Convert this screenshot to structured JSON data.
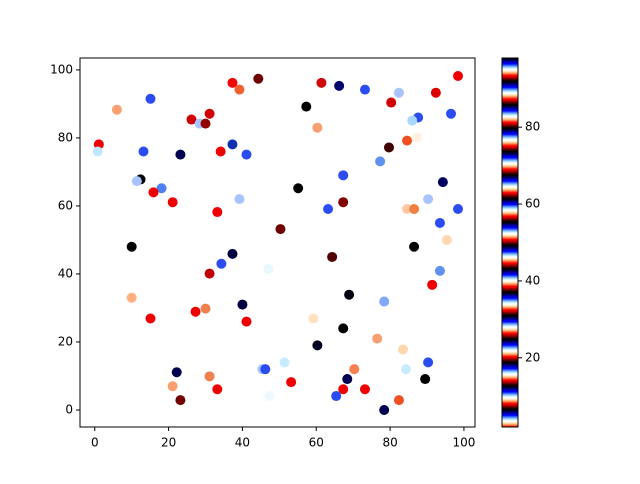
{
  "chart_data": {
    "type": "scatter",
    "x": [
      98.4,
      92.4,
      44.3,
      37.3,
      39.2,
      61.4,
      66.2,
      73.2,
      82.4,
      15.1,
      57.3,
      80.3,
      6.0,
      96.5,
      26.2,
      28.4,
      30.0,
      31.1,
      87.6,
      86.0,
      60.3,
      84.6,
      87.3,
      1.1,
      0.8,
      13.2,
      23.2,
      34.1,
      37.3,
      41.1,
      79.7,
      77.3,
      67.3,
      12.4,
      11.4,
      18.1,
      15.9,
      55.1,
      94.3,
      90.3,
      39.2,
      21.1,
      67.3,
      63.2,
      84.6,
      86.5,
      98.4,
      33.2,
      93.5,
      50.3,
      95.4,
      10.0,
      86.5,
      37.3,
      64.3,
      34.3,
      47.0,
      93.5,
      31.1,
      91.4,
      68.9,
      40.0,
      78.4,
      10.0,
      30.0,
      27.3,
      59.2,
      15.1,
      41.1,
      67.3,
      76.5,
      60.3,
      83.5,
      51.4,
      90.3,
      45.4,
      46.2,
      84.3,
      70.3,
      22.2,
      53.2,
      31.1,
      68.4,
      89.5,
      21.1,
      33.2,
      73.2,
      67.3,
      65.4,
      82.4,
      23.2,
      47.3,
      78.4
    ],
    "y": [
      98.2,
      93.3,
      97.4,
      96.2,
      94.2,
      96.2,
      95.3,
      94.2,
      93.3,
      91.5,
      89.2,
      90.4,
      88.3,
      87.1,
      85.4,
      84.2,
      84.2,
      87.1,
      86.0,
      85.1,
      83.0,
      79.2,
      80.1,
      78.1,
      76.0,
      76.0,
      75.1,
      76.0,
      78.1,
      75.1,
      77.2,
      73.1,
      69.0,
      67.8,
      67.3,
      65.2,
      64.0,
      65.2,
      67.0,
      62.0,
      62.0,
      61.1,
      61.1,
      59.1,
      59.1,
      59.1,
      59.1,
      58.2,
      55.0,
      53.2,
      50.0,
      48.0,
      48.0,
      45.9,
      45.0,
      43.0,
      41.5,
      40.9,
      40.1,
      36.8,
      33.9,
      31.0,
      31.9,
      33.0,
      29.8,
      28.9,
      26.9,
      26.9,
      26.0,
      24.0,
      21.0,
      19.0,
      17.8,
      14.0,
      14.0,
      12.0,
      12.0,
      12.0,
      12.0,
      11.1,
      8.2,
      9.9,
      9.1,
      9.1,
      7.0,
      6.1,
      6.1,
      6.1,
      4.1,
      2.9,
      2.9,
      4.1,
      0.0
    ],
    "colors": [
      "#ee0000",
      "#dd0000",
      "#700000",
      "#ee0808",
      "#f06030",
      "#d00a0a",
      "#00006a",
      "#2a4cf0",
      "#a8c4ff",
      "#2a4cf0",
      "#000000",
      "#d00000",
      "#f8a070",
      "#2a4cf0",
      "#d00000",
      "#a8c4ff",
      "#900000",
      "#d00000",
      "#2a4cf0",
      "#a8d8ff",
      "#f8a070",
      "#f05020",
      "#fff0e0",
      "#ee0000",
      "#c0e8ff",
      "#2a4cf0",
      "#000050",
      "#ee0000",
      "#1030b0",
      "#2a4cf0",
      "#400000",
      "#6090f0",
      "#2a4cf0",
      "#000000",
      "#a8c4ff",
      "#5080f0",
      "#ee0000",
      "#000000",
      "#000060",
      "#a8c4ff",
      "#a8c4ff",
      "#ee0000",
      "#800000",
      "#2a4cf0",
      "#ffc8a0",
      "#f08040",
      "#2a4cf0",
      "#ee0000",
      "#2a4cf0",
      "#700000",
      "#ffd8b0",
      "#000000",
      "#000000",
      "#000040",
      "#500000",
      "#2a4cf0",
      "#e8f8ff",
      "#6090f0",
      "#c00000",
      "#ee0000",
      "#000010",
      "#000040",
      "#80a8f8",
      "#ffb080",
      "#f08050",
      "#ee0000",
      "#ffe0c0",
      "#ee0000",
      "#ee0000",
      "#000000",
      "#f8a070",
      "#000020",
      "#ffd8b0",
      "#c8ecff",
      "#2a4cf0",
      "#a8c4ff",
      "#2a4cf0",
      "#c8ecff",
      "#f88050",
      "#000050",
      "#ee0000",
      "#f08050",
      "#000050",
      "#000000",
      "#f8a070",
      "#ee0000",
      "#ee0000",
      "#ee0000",
      "#2a4cf0",
      "#f05020",
      "#700000",
      "#f0f8ff",
      "#000050"
    ],
    "xlim": [
      -4,
      103
    ],
    "ylim": [
      -5,
      103.5
    ],
    "xticks": [
      0,
      20,
      40,
      60,
      80,
      100
    ],
    "yticks": [
      0,
      20,
      40,
      60,
      80,
      100
    ],
    "colorbar": {
      "colormap": "flag",
      "lim": [
        2,
        98
      ],
      "ticks": [
        20,
        40,
        60,
        80
      ]
    }
  }
}
